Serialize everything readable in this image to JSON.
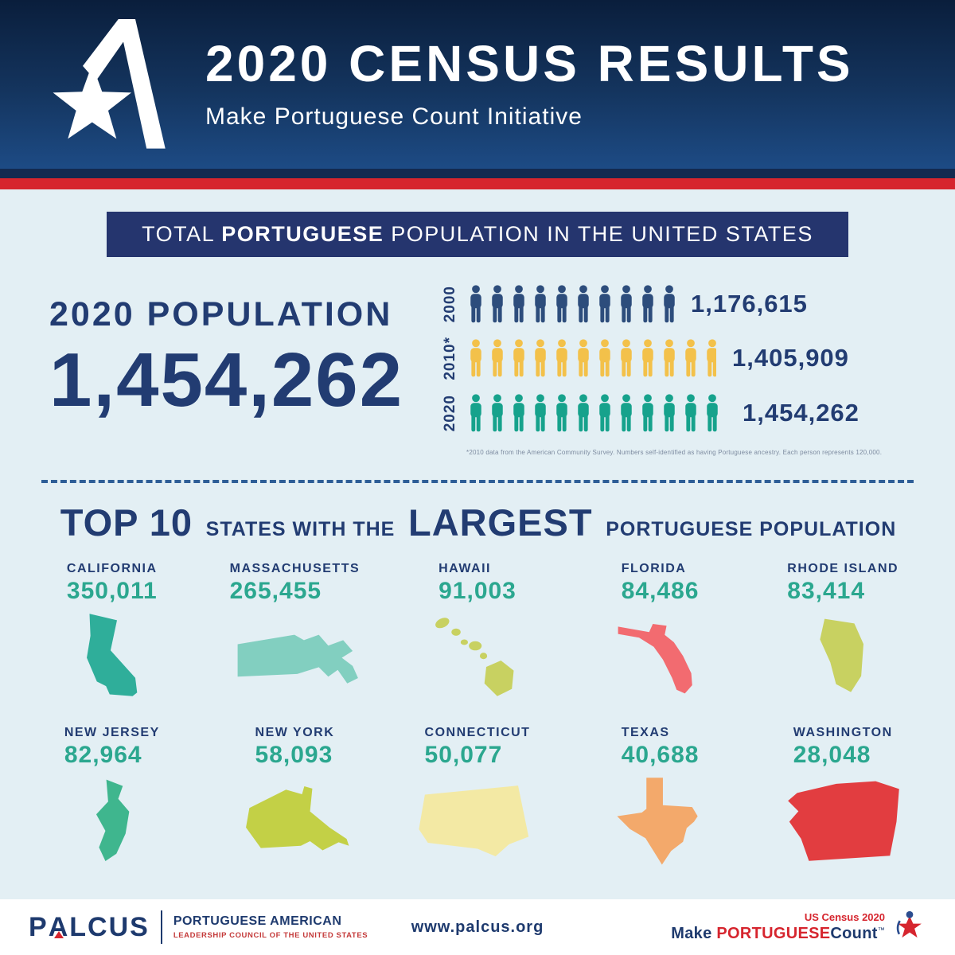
{
  "header": {
    "title": "2020 CENSUS RESULTS",
    "subtitle": "Make Portuguese Count Initiative"
  },
  "banner": {
    "text_pre": "TOTAL",
    "text_bold": "PORTUGUESE",
    "text_post": "POPULATION IN THE UNITED STATES"
  },
  "population": {
    "label": "2020 POPULATION",
    "value": "1,454,262"
  },
  "chart_data": [
    {
      "type": "pictogram",
      "title": "Total Portuguese population in the United States",
      "categories": [
        "2000",
        "2010*",
        "2020"
      ],
      "values": [
        1176615,
        1405909,
        1454262
      ],
      "value_labels": [
        "1,176,615",
        "1,405,909",
        "1,454,262"
      ],
      "colors": [
        "#2d4d7c",
        "#f3c14a",
        "#16a28c"
      ],
      "icons_full": [
        9,
        11,
        12
      ],
      "icon_fractions": [
        0.8,
        0.7,
        0.12
      ],
      "footnote": "*2010 data from the American Community Survey. Numbers self-identified as having Portuguese ancestry. Each person represents 120,000."
    },
    {
      "type": "table",
      "title": "Top 10 states with the largest Portuguese population",
      "categories": [
        "California",
        "Massachusetts",
        "Hawaii",
        "Florida",
        "Rhode Island",
        "New Jersey",
        "New York",
        "Connecticut",
        "Texas",
        "Washington"
      ],
      "values": [
        350011,
        265455,
        91003,
        84486,
        83414,
        82964,
        58093,
        50077,
        40688,
        28048
      ]
    }
  ],
  "top10": {
    "title_big1": "TOP 10",
    "title_small1": "STATES WITH THE",
    "title_big2": "LARGEST",
    "title_small2": "PORTUGUESE POPULATION",
    "states": [
      {
        "name": "CALIFORNIA",
        "value": "350,011",
        "color": "#2fae9a",
        "shape": "california"
      },
      {
        "name": "MASSACHUSETTS",
        "value": "265,455",
        "color": "#82cfc0",
        "shape": "massachusetts"
      },
      {
        "name": "HAWAII",
        "value": "91,003",
        "color": "#c8d161",
        "shape": "hawaii"
      },
      {
        "name": "FLORIDA",
        "value": "84,486",
        "color": "#f26b70",
        "shape": "florida"
      },
      {
        "name": "RHODE ISLAND",
        "value": "83,414",
        "color": "#c8d161",
        "shape": "rhode-island"
      },
      {
        "name": "NEW JERSEY",
        "value": "82,964",
        "color": "#3fb68e",
        "shape": "new-jersey"
      },
      {
        "name": "NEW YORK",
        "value": "58,093",
        "color": "#c3d046",
        "shape": "new-york"
      },
      {
        "name": "CONNECTICUT",
        "value": "50,077",
        "color": "#f3e9a4",
        "shape": "connecticut"
      },
      {
        "name": "TEXAS",
        "value": "40,688",
        "color": "#f3a96b",
        "shape": "texas"
      },
      {
        "name": "WASHINGTON",
        "value": "28,048",
        "color": "#e23d40",
        "shape": "washington"
      }
    ]
  },
  "footer": {
    "logo_p": "P",
    "logo_a": "A",
    "logo_rest": "LCUS",
    "org_line1": "PORTUGUESE AMERICAN",
    "org_line2": "LEADERSHIP COUNCIL OF THE UNITED STATES",
    "website": "www.palcus.org",
    "badge_top": "US Census 2020",
    "badge_make": "Make",
    "badge_portuguese": "PORTUGUESE",
    "badge_count": "Count",
    "badge_tm": "™"
  },
  "icons": {
    "header_logo": "palcus-star-logo-icon",
    "pictogram_unit": "person-icon",
    "footer_badge": "census-star-person-icon"
  },
  "colors": {
    "navy": "#223c72",
    "red": "#d6252e",
    "background": "#e3eff4",
    "teal": "#2ba78f",
    "banner_navy": "#25356e"
  }
}
